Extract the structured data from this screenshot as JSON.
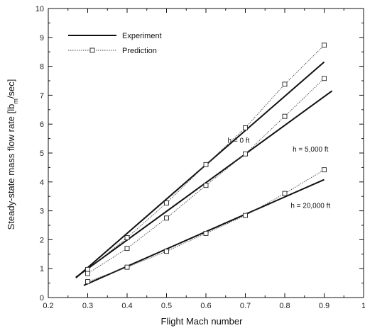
{
  "chart_data": {
    "type": "line",
    "xlabel": "Flight Mach number",
    "ylabel": "Steady-state mass flow rate [lb",
    "ylabel_sub": "m",
    "ylabel_tail": "/sec]",
    "xlim": [
      0.2,
      1.0
    ],
    "ylim": [
      0,
      10
    ],
    "xticks": [
      0.2,
      0.3,
      0.4,
      0.5,
      0.6,
      0.7,
      0.8,
      0.9,
      1.0
    ],
    "xtick_labels": [
      "0.2",
      "0.3",
      "0.4",
      "0.5",
      "0.6",
      "0.7",
      "0.8",
      "0.9",
      "1"
    ],
    "yticks": [
      0,
      1,
      2,
      3,
      4,
      5,
      6,
      7,
      8,
      9,
      10
    ],
    "ytick_labels": [
      "0",
      "1",
      "2",
      "3",
      "4",
      "5",
      "6",
      "7",
      "8",
      "9",
      "10"
    ],
    "grid": false,
    "legend_position": "top-left",
    "legend": [
      {
        "label": "Experiment",
        "style": "solid"
      },
      {
        "label": "Prediction",
        "style": "dotted-square"
      }
    ],
    "series": [
      {
        "name": "Experiment",
        "group": "h = 0 ft",
        "style": "solid",
        "x": [
          0.27,
          0.9
        ],
        "y": [
          0.68,
          8.15
        ]
      },
      {
        "name": "Experiment",
        "group": "h = 5,000 ft",
        "style": "solid",
        "x": [
          0.27,
          0.92
        ],
        "y": [
          0.7,
          7.15
        ]
      },
      {
        "name": "Experiment",
        "group": "h = 20,000 ft",
        "style": "solid",
        "x": [
          0.29,
          0.9
        ],
        "y": [
          0.42,
          4.08
        ]
      },
      {
        "name": "Prediction",
        "group": "h = 0 ft",
        "style": "dotted-square",
        "x": [
          0.3,
          0.4,
          0.5,
          0.6,
          0.7,
          0.8,
          0.9
        ],
        "y": [
          0.97,
          2.07,
          3.27,
          4.6,
          5.87,
          7.38,
          8.73
        ]
      },
      {
        "name": "Prediction",
        "group": "h = 5,000 ft",
        "style": "dotted-square",
        "x": [
          0.3,
          0.4,
          0.5,
          0.6,
          0.7,
          0.8,
          0.9
        ],
        "y": [
          0.83,
          1.7,
          2.75,
          3.88,
          4.97,
          6.27,
          7.58
        ]
      },
      {
        "name": "Prediction",
        "group": "h = 20,000 ft",
        "style": "dotted-square",
        "x": [
          0.3,
          0.4,
          0.5,
          0.6,
          0.7,
          0.8,
          0.9
        ],
        "y": [
          0.55,
          1.05,
          1.6,
          2.22,
          2.84,
          3.6,
          4.42
        ]
      }
    ],
    "annotations": [
      {
        "text": "h = 0 ft",
        "x": 0.655,
        "y": 5.35
      },
      {
        "text": "h = 5,000 ft",
        "x": 0.82,
        "y": 5.05
      },
      {
        "text": "h = 20,000 ft",
        "x": 0.815,
        "y": 3.1
      }
    ]
  },
  "colors": {
    "line": "#111111",
    "prediction_line": "#444444",
    "marker_fill": "#ffffff",
    "background": "#ffffff"
  }
}
